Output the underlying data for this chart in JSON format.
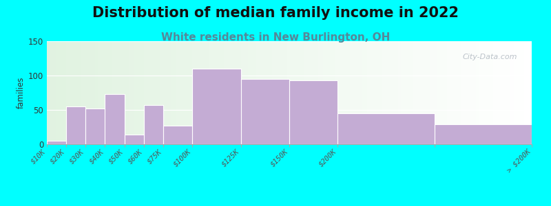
{
  "title": "Distribution of median family income in 2022",
  "subtitle": "White residents in New Burlington, OH",
  "ylabel": "families",
  "background_color": "#00FFFF",
  "bar_color": "#c4acd4",
  "bar_edge_color": "#ffffff",
  "bin_edges": [
    0,
    10,
    20,
    30,
    40,
    50,
    60,
    75,
    100,
    125,
    150,
    200,
    250
  ],
  "values": [
    5,
    55,
    52,
    73,
    14,
    57,
    27,
    110,
    95,
    93,
    45,
    29
  ],
  "tick_positions": [
    0,
    10,
    20,
    30,
    40,
    50,
    60,
    75,
    100,
    125,
    150,
    200,
    250
  ],
  "tick_labels": [
    "$10K",
    "$20K",
    "$30K",
    "$40K",
    "$50K",
    "$60K",
    "$75K",
    "$100K",
    "$125K",
    "$150K",
    "$200K",
    "",
    "> $200K"
  ],
  "ylim": [
    0,
    150
  ],
  "yticks": [
    0,
    50,
    100,
    150
  ],
  "watermark": "City-Data.com",
  "title_fontsize": 15,
  "subtitle_fontsize": 11,
  "subtitle_color": "#558899",
  "tick_label_fontsize": 7.5
}
